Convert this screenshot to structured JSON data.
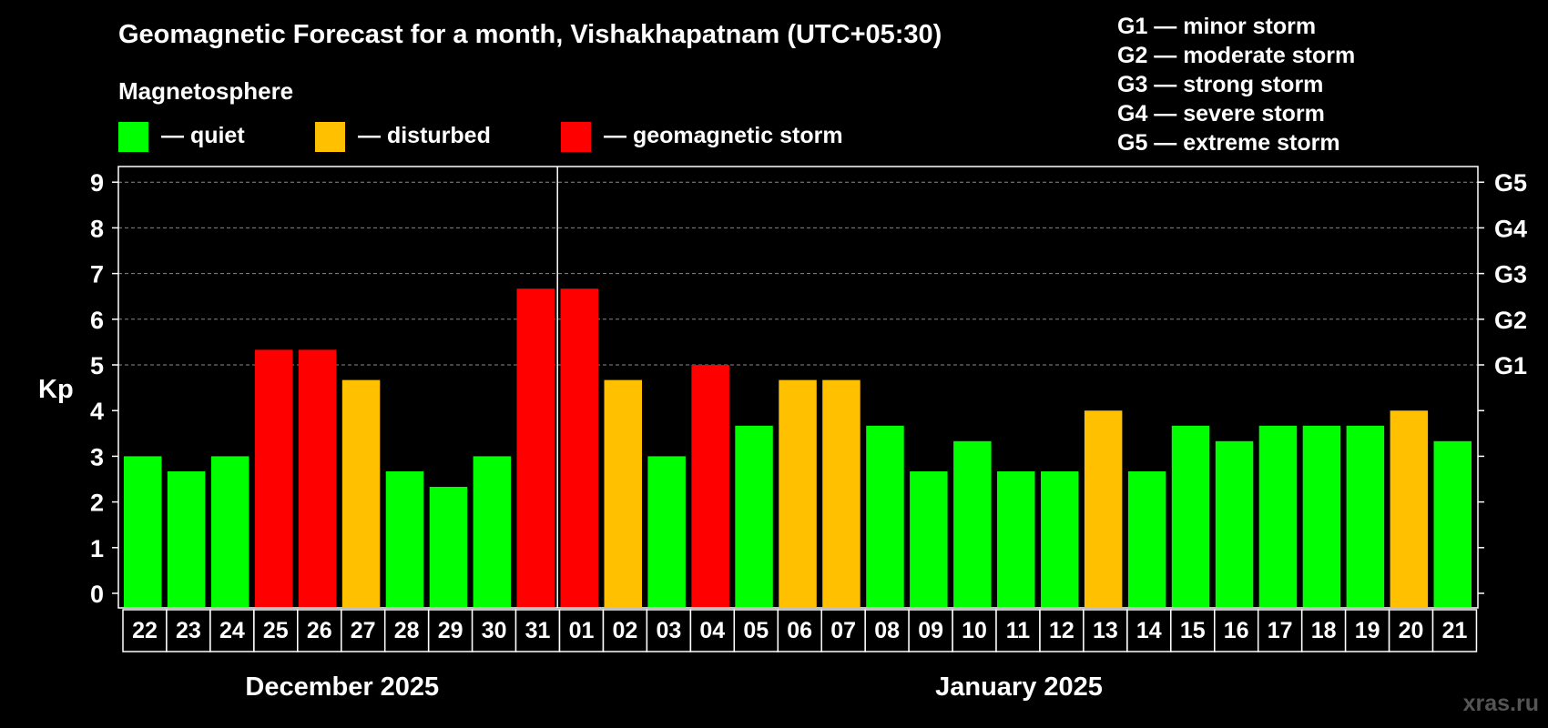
{
  "chart_data": {
    "type": "bar",
    "title": "Geomagnetic Forecast for a month, Vishakhapatnam (UTC+05:30)",
    "legend_title": "Magnetosphere",
    "legend": [
      {
        "key": "quiet",
        "label": "— quiet",
        "color": "#00ff00"
      },
      {
        "key": "disturbed",
        "label": "— disturbed",
        "color": "#ffc000"
      },
      {
        "key": "storm",
        "label": "— geomagnetic storm",
        "color": "#ff0000"
      }
    ],
    "storm_scale": [
      "G1 — minor storm",
      "G2 — moderate storm",
      "G3 — strong storm",
      "G4 — severe storm",
      "G5 — extreme storm"
    ],
    "ylabel": "Kp",
    "ylim": [
      0,
      9
    ],
    "yticks": [
      "0",
      "1",
      "2",
      "3",
      "4",
      "5",
      "6",
      "7",
      "8",
      "9"
    ],
    "right_axis": [
      {
        "y": 5,
        "label": "G1"
      },
      {
        "y": 6,
        "label": "G2"
      },
      {
        "y": 7,
        "label": "G3"
      },
      {
        "y": 8,
        "label": "G4"
      },
      {
        "y": 9,
        "label": "G5"
      }
    ],
    "grid": true,
    "categories": [
      "22",
      "23",
      "24",
      "25",
      "26",
      "27",
      "28",
      "29",
      "30",
      "31",
      "01",
      "02",
      "03",
      "04",
      "05",
      "06",
      "07",
      "08",
      "09",
      "10",
      "11",
      "12",
      "13",
      "14",
      "15",
      "16",
      "17",
      "18",
      "19",
      "20",
      "21"
    ],
    "values": [
      3.0,
      2.67,
      3.0,
      5.33,
      5.33,
      4.67,
      2.67,
      2.33,
      3.0,
      6.67,
      6.67,
      4.67,
      3.0,
      5.0,
      3.67,
      4.67,
      4.67,
      3.67,
      2.67,
      3.33,
      2.67,
      2.67,
      4.0,
      2.67,
      3.67,
      3.33,
      3.67,
      3.67,
      3.67,
      4.0,
      3.33
    ],
    "levels": [
      "quiet",
      "quiet",
      "quiet",
      "storm",
      "storm",
      "disturbed",
      "quiet",
      "quiet",
      "quiet",
      "storm",
      "storm",
      "disturbed",
      "quiet",
      "storm",
      "quiet",
      "disturbed",
      "disturbed",
      "quiet",
      "quiet",
      "quiet",
      "quiet",
      "quiet",
      "disturbed",
      "quiet",
      "quiet",
      "quiet",
      "quiet",
      "quiet",
      "quiet",
      "disturbed",
      "quiet"
    ],
    "month_labels": [
      {
        "label": "December 2025",
        "from": 0,
        "to": 9
      },
      {
        "label": "January 2025",
        "from": 10,
        "to": 30
      }
    ],
    "divider_after_index": 9
  },
  "watermark": "xras.ru"
}
